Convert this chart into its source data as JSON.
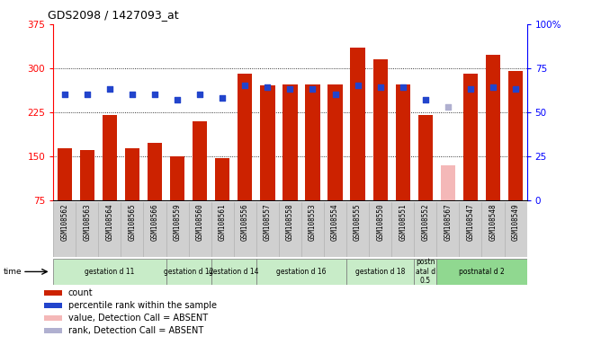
{
  "title": "GDS2098 / 1427093_at",
  "samples": [
    "GSM108562",
    "GSM108563",
    "GSM108564",
    "GSM108565",
    "GSM108566",
    "GSM108559",
    "GSM108560",
    "GSM108561",
    "GSM108556",
    "GSM108557",
    "GSM108558",
    "GSM108553",
    "GSM108554",
    "GSM108555",
    "GSM108550",
    "GSM108551",
    "GSM108552",
    "GSM108567",
    "GSM108547",
    "GSM108548",
    "GSM108549"
  ],
  "count_values": [
    163,
    160,
    220,
    163,
    172,
    150,
    210,
    147,
    290,
    270,
    272,
    272,
    272,
    335,
    315,
    272,
    220,
    135,
    290,
    322,
    295
  ],
  "rank_values": [
    60,
    60,
    63,
    60,
    60,
    57,
    60,
    58,
    65,
    64,
    63,
    63,
    60,
    65,
    64,
    64,
    57,
    53,
    63,
    64,
    63
  ],
  "absent_count": [
    false,
    false,
    false,
    false,
    false,
    false,
    false,
    false,
    false,
    false,
    false,
    false,
    false,
    false,
    false,
    false,
    false,
    true,
    false,
    false,
    false
  ],
  "absent_rank": [
    false,
    false,
    false,
    false,
    false,
    false,
    false,
    false,
    false,
    false,
    false,
    false,
    false,
    false,
    false,
    false,
    false,
    true,
    false,
    false,
    false
  ],
  "groups": [
    {
      "label": "gestation d 11",
      "start": 0,
      "end": 5
    },
    {
      "label": "gestation d 12",
      "start": 5,
      "end": 7
    },
    {
      "label": "gestation d 14",
      "start": 7,
      "end": 9
    },
    {
      "label": "gestation d 16",
      "start": 9,
      "end": 13
    },
    {
      "label": "gestation d 18",
      "start": 13,
      "end": 16
    },
    {
      "label": "postn\natal d\n0.5",
      "start": 16,
      "end": 17
    },
    {
      "label": "postnatal d 2",
      "start": 17,
      "end": 21
    }
  ],
  "group_colors": [
    "#c8ecc8",
    "#c8ecc8",
    "#c8ecc8",
    "#c8ecc8",
    "#c8ecc8",
    "#c8ecc8",
    "#90d890"
  ],
  "bar_color": "#cc2200",
  "absent_bar_color": "#f4b8b8",
  "rank_color": "#2244cc",
  "absent_rank_color": "#b0b0d0",
  "left_ylim": [
    75,
    375
  ],
  "left_yticks": [
    75,
    150,
    225,
    300,
    375
  ],
  "right_ylim": [
    0,
    100
  ],
  "right_yticks": [
    0,
    25,
    50,
    75,
    100
  ],
  "right_yticklabels": [
    "0",
    "25",
    "50",
    "75",
    "100%"
  ],
  "grid_values": [
    150,
    225,
    300
  ],
  "sample_label_bg": "#d0d0d0",
  "plot_bg": "#ffffff"
}
